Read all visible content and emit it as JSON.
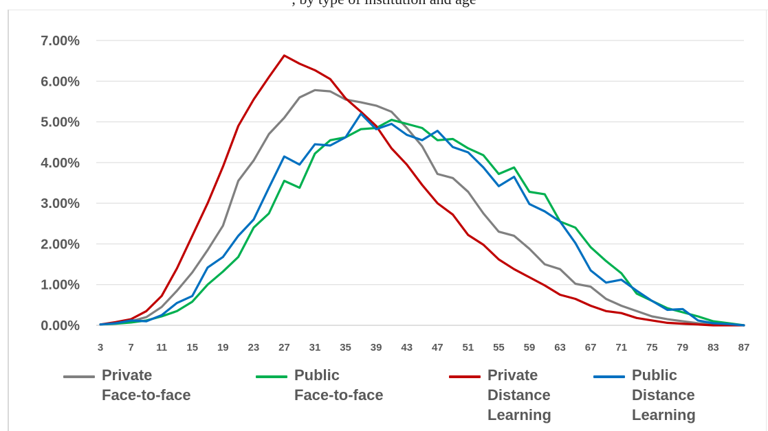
{
  "title_fragment": ", by type of institution and age",
  "chart_data": {
    "type": "line",
    "title": "",
    "xlabel": "",
    "ylabel": "",
    "ylim": [
      0,
      7
    ],
    "y_tick_labels": [
      "0.00%",
      "1.00%",
      "2.00%",
      "3.00%",
      "4.00%",
      "5.00%",
      "6.00%",
      "7.00%"
    ],
    "x_tick_labels": [
      "3",
      "7",
      "11",
      "15",
      "19",
      "23",
      "27",
      "31",
      "35",
      "39",
      "43",
      "47",
      "51",
      "55",
      "59",
      "63",
      "67",
      "71",
      "75",
      "79",
      "83",
      "87"
    ],
    "x": [
      3,
      5,
      7,
      9,
      11,
      13,
      15,
      17,
      19,
      21,
      23,
      25,
      27,
      29,
      31,
      33,
      35,
      37,
      39,
      41,
      43,
      45,
      47,
      49,
      51,
      53,
      55,
      57,
      59,
      61,
      63,
      65,
      67,
      69,
      71,
      73,
      75,
      77,
      79,
      81,
      83,
      85,
      87
    ],
    "grid": true,
    "legend_position": "bottom",
    "series": [
      {
        "name": "Private\nFace-to-face",
        "color": "#808080",
        "values": [
          0.02,
          0.05,
          0.1,
          0.2,
          0.45,
          0.85,
          1.3,
          1.85,
          2.45,
          3.55,
          4.05,
          4.7,
          5.1,
          5.6,
          5.78,
          5.75,
          5.55,
          5.48,
          5.4,
          5.25,
          4.85,
          4.4,
          3.72,
          3.62,
          3.28,
          2.75,
          2.3,
          2.2,
          1.88,
          1.5,
          1.38,
          1.02,
          0.95,
          0.65,
          0.48,
          0.35,
          0.22,
          0.15,
          0.1,
          0.05,
          0.03,
          0.02,
          0.0
        ]
      },
      {
        "name": "Public\nFace-to-face",
        "color": "#00b050",
        "values": [
          0.02,
          0.04,
          0.07,
          0.12,
          0.22,
          0.35,
          0.58,
          1.0,
          1.32,
          1.68,
          2.4,
          2.75,
          3.55,
          3.38,
          4.22,
          4.55,
          4.62,
          4.82,
          4.85,
          5.05,
          4.95,
          4.85,
          4.55,
          4.58,
          4.35,
          4.18,
          3.72,
          3.88,
          3.28,
          3.22,
          2.55,
          2.4,
          1.92,
          1.58,
          1.28,
          0.78,
          0.6,
          0.42,
          0.32,
          0.22,
          0.1,
          0.05,
          0.0
        ]
      },
      {
        "name": "Private\nDistance\nLearning",
        "color": "#c00000",
        "values": [
          0.02,
          0.08,
          0.15,
          0.35,
          0.72,
          1.4,
          2.2,
          3.0,
          3.9,
          4.9,
          5.55,
          6.1,
          6.63,
          6.43,
          6.27,
          6.05,
          5.58,
          5.25,
          4.9,
          4.35,
          3.95,
          3.45,
          3.0,
          2.72,
          2.22,
          1.98,
          1.62,
          1.38,
          1.18,
          0.98,
          0.75,
          0.65,
          0.48,
          0.35,
          0.3,
          0.18,
          0.12,
          0.06,
          0.04,
          0.02,
          0.0,
          0.0,
          0.0
        ]
      },
      {
        "name": "Public\nDistance\nLearning",
        "color": "#0070c0",
        "values": [
          0.02,
          0.05,
          0.12,
          0.1,
          0.25,
          0.55,
          0.72,
          1.42,
          1.68,
          2.2,
          2.6,
          3.38,
          4.15,
          3.95,
          4.45,
          4.42,
          4.62,
          5.2,
          4.82,
          4.95,
          4.68,
          4.55,
          4.78,
          4.38,
          4.25,
          3.88,
          3.42,
          3.65,
          2.98,
          2.8,
          2.55,
          2.02,
          1.35,
          1.05,
          1.12,
          0.85,
          0.6,
          0.38,
          0.4,
          0.12,
          0.05,
          0.03,
          0.0
        ]
      }
    ]
  }
}
